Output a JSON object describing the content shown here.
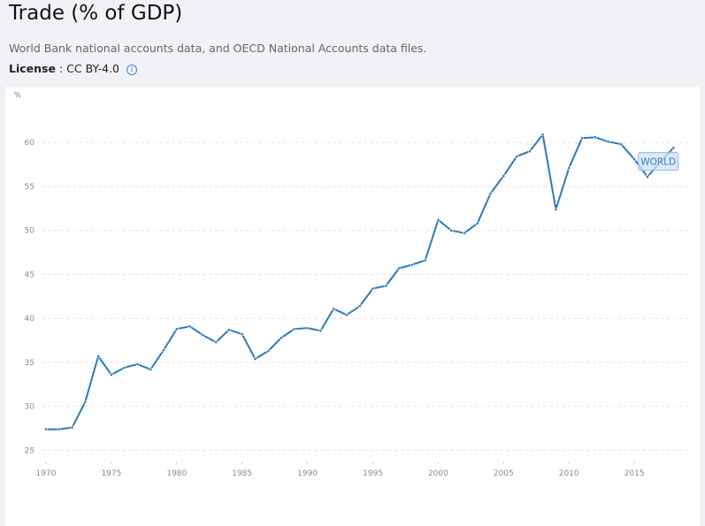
{
  "header": {
    "title": "Trade (% of GDP)",
    "source": "World Bank national accounts data, and OECD National Accounts data files.",
    "license_label": "License",
    "license_sep": " : ",
    "license_value": "CC BY-4.0",
    "info_icon": "info-icon"
  },
  "colors": {
    "line": "#2c7bb6",
    "label_bg": "#cfe3f5",
    "label_border": "#8cb9e0",
    "label_text": "#3b7bbf",
    "grid": "#e3e3e3"
  },
  "chart_data": {
    "type": "line",
    "title": "Trade (% of GDP)",
    "xlabel": "",
    "ylabel": "%",
    "xlim": [
      1970,
      2018
    ],
    "ylim": [
      25,
      62
    ],
    "grid": true,
    "y_ticks": [
      25,
      30,
      35,
      40,
      45,
      50,
      55,
      60
    ],
    "x_ticks": [
      1970,
      1975,
      1980,
      1985,
      1990,
      1995,
      2000,
      2005,
      2010,
      2015
    ],
    "series": [
      {
        "name": "WORLD",
        "x": [
          1970,
          1971,
          1972,
          1973,
          1974,
          1975,
          1976,
          1977,
          1978,
          1979,
          1980,
          1981,
          1982,
          1983,
          1984,
          1985,
          1986,
          1987,
          1988,
          1989,
          1990,
          1991,
          1992,
          1993,
          1994,
          1995,
          1996,
          1997,
          1998,
          1999,
          2000,
          2001,
          2002,
          2003,
          2004,
          2005,
          2006,
          2007,
          2008,
          2009,
          2010,
          2011,
          2012,
          2013,
          2014,
          2015,
          2016,
          2017,
          2018
        ],
        "values": [
          27.4,
          27.4,
          27.6,
          30.5,
          35.7,
          33.6,
          34.4,
          34.8,
          34.2,
          36.4,
          38.8,
          39.1,
          38.1,
          37.3,
          38.7,
          38.2,
          35.4,
          36.3,
          37.8,
          38.8,
          38.9,
          38.6,
          41.1,
          40.4,
          41.4,
          43.4,
          43.7,
          45.7,
          46.1,
          46.6,
          51.2,
          50.0,
          49.7,
          50.8,
          54.2,
          56.2,
          58.4,
          59.0,
          60.9,
          52.4,
          57.1,
          60.5,
          60.6,
          60.1,
          59.8,
          58.1,
          56.1,
          57.8,
          59.4
        ]
      }
    ],
    "annotations": [
      {
        "text": "WORLD",
        "series": "WORLD",
        "near_x": 2017
      }
    ]
  }
}
